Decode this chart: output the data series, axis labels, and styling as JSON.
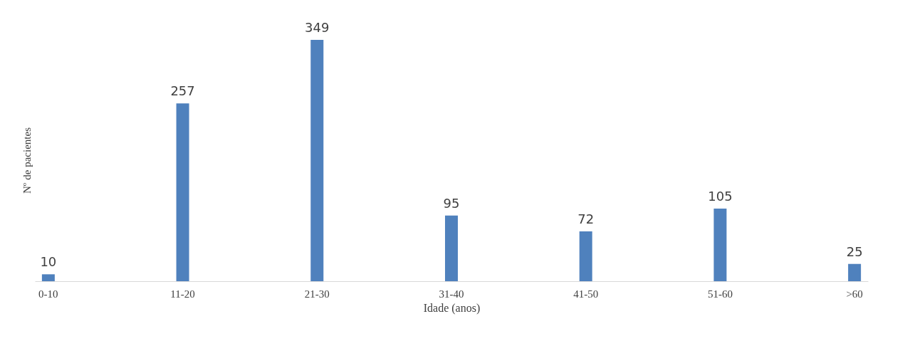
{
  "chart_data": {
    "type": "bar",
    "xlabel": "Idade (anos)",
    "ylabel": "Nº de pacientes",
    "categories": [
      "0-10",
      "11-20",
      "21-30",
      "31-40",
      "41-50",
      "51-60",
      ">60"
    ],
    "values": [
      10,
      257,
      349,
      95,
      72,
      105,
      25
    ],
    "color": "#4f81bd",
    "data_labels": true,
    "grid": false,
    "tick_labels": "x"
  }
}
